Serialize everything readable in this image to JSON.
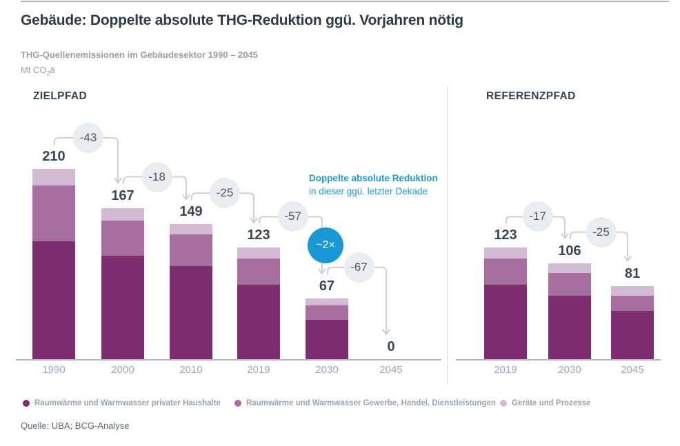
{
  "page": {
    "title": "Gebäude: Doppelte absolute THG-Reduktion ggü. Vorjahren nötig",
    "subtitle": "THG-Quellenemissionen im Gebäudesektor 1990 – 2045",
    "unit_prefix": "Mt CO",
    "unit_sub": "2",
    "unit_suffix": "ä",
    "source": "Quelle: UBA; BCG-Analyse"
  },
  "annotation": {
    "line1": "Doppelte absolute Reduktion",
    "line2": "in dieser ggü. letzter Dekade",
    "badge_label": "~2×"
  },
  "colors": {
    "series_households": "#7e2d6e",
    "series_commerce": "#a76f9f",
    "series_devices": "#d4bbd4",
    "accent_blue": "#1899d6",
    "delta_circle_bg": "#e9edf0",
    "arrow_gray": "#c9d1d7",
    "axis_gray": "#afbac3",
    "text_dark": "#39464f",
    "text_gray": "#95a0a9"
  },
  "legend": [
    {
      "label": "Raumwärme und Warmwasser privater Haushalte",
      "color": "#7e2d6e"
    },
    {
      "label": "Raumwärme und Warmwasser Gewerbe, Handel, Dienstleistungen",
      "color": "#a76f9f"
    },
    {
      "label": "Geräte und Prozesse",
      "color": "#d4bbd4"
    }
  ],
  "chart_data": [
    {
      "type": "bar",
      "stacked": true,
      "title": "ZIELPFAD",
      "categories": [
        "1990",
        "2000",
        "2010",
        "2019",
        "2030",
        "2045"
      ],
      "totals": [
        210,
        167,
        149,
        123,
        67,
        0
      ],
      "series": [
        {
          "name": "Raumwärme und Warmwasser privater Haushalte",
          "values": [
            130,
            114,
            103,
            82,
            43,
            0
          ]
        },
        {
          "name": "Raumwärme und Warmwasser Gewerbe, Handel, Dienstleistungen",
          "values": [
            62,
            39,
            35,
            29,
            16,
            0
          ]
        },
        {
          "name": "Geräte und Prozesse",
          "values": [
            18,
            14,
            11,
            12,
            8,
            0
          ]
        }
      ],
      "deltas": [
        "-43",
        "-18",
        "-25",
        "-57",
        "-67"
      ],
      "multiplier_badge_at_transition": 3,
      "ylabel": "Mt CO2ä",
      "ylim": [
        0,
        220
      ],
      "grid": false
    },
    {
      "type": "bar",
      "stacked": true,
      "title": "REFERENZPFAD",
      "categories": [
        "2019",
        "2030",
        "2045"
      ],
      "totals": [
        123,
        106,
        81
      ],
      "series": [
        {
          "name": "Raumwärme und Warmwasser privater Haushalte",
          "values": [
            82,
            70,
            53
          ]
        },
        {
          "name": "Raumwärme und Warmwasser Gewerbe, Handel, Dienstleistungen",
          "values": [
            29,
            25,
            17
          ]
        },
        {
          "name": "Geräte und Prozesse",
          "values": [
            12,
            11,
            11
          ]
        }
      ],
      "deltas": [
        "-17",
        "-25"
      ],
      "ylabel": "Mt CO2ä",
      "ylim": [
        0,
        220
      ],
      "grid": false
    }
  ]
}
